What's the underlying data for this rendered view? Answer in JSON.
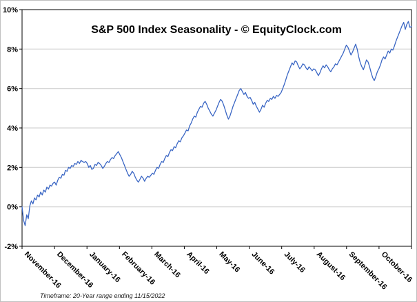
{
  "chart_data": {
    "type": "line",
    "title": "S&P 500 Index Seasonality - © EquityClock.com",
    "footnote": "Timeframe: 20-Year range ending 11/15/2022",
    "categories": [
      "November-16",
      "December-16",
      "January-16",
      "February-16",
      "March-16",
      "April-16",
      "May-16",
      "June-16",
      "July-16",
      "August-16",
      "September-16",
      "October-16"
    ],
    "y_ticks": [
      "-2%",
      "0%",
      "2%",
      "4%",
      "6%",
      "8%",
      "10%"
    ],
    "ylim": [
      -2,
      10
    ],
    "grid": true,
    "legend_position": "none",
    "line_color": "#3A66C4",
    "grid_color": "#C9C9C9",
    "axis_color": "#000000",
    "values": [
      0.0,
      -0.7,
      -0.95,
      -0.4,
      -0.6,
      0.05,
      0.3,
      0.15,
      0.45,
      0.35,
      0.6,
      0.5,
      0.75,
      0.6,
      0.85,
      0.75,
      1.0,
      0.9,
      1.1,
      1.05,
      1.2,
      1.25,
      1.1,
      1.35,
      1.5,
      1.45,
      1.65,
      1.6,
      1.85,
      1.8,
      2.0,
      1.95,
      2.1,
      2.05,
      2.2,
      2.15,
      2.3,
      2.2,
      2.35,
      2.3,
      2.25,
      2.3,
      2.2,
      2.0,
      2.1,
      1.9,
      1.95,
      2.15,
      2.1,
      2.25,
      2.2,
      2.1,
      1.95,
      2.05,
      2.2,
      2.3,
      2.25,
      2.4,
      2.5,
      2.45,
      2.6,
      2.7,
      2.8,
      2.65,
      2.5,
      2.3,
      2.1,
      1.9,
      1.7,
      1.55,
      1.65,
      1.8,
      1.7,
      1.5,
      1.35,
      1.25,
      1.4,
      1.55,
      1.45,
      1.3,
      1.45,
      1.55,
      1.5,
      1.6,
      1.7,
      1.65,
      1.85,
      2.0,
      1.95,
      2.15,
      2.3,
      2.25,
      2.45,
      2.6,
      2.55,
      2.75,
      2.9,
      2.85,
      3.05,
      3.0,
      3.2,
      3.35,
      3.3,
      3.5,
      3.6,
      3.75,
      3.9,
      3.85,
      4.1,
      4.25,
      4.45,
      4.6,
      4.55,
      4.8,
      4.95,
      5.1,
      5.05,
      5.25,
      5.35,
      5.2,
      5.0,
      4.85,
      4.7,
      4.6,
      4.75,
      4.9,
      5.1,
      5.3,
      5.45,
      5.35,
      5.15,
      4.9,
      4.65,
      4.45,
      4.6,
      4.85,
      5.1,
      5.3,
      5.5,
      5.7,
      5.9,
      6.0,
      5.85,
      5.7,
      5.8,
      5.6,
      5.5,
      5.55,
      5.4,
      5.2,
      5.3,
      5.1,
      4.95,
      4.8,
      4.95,
      5.15,
      5.05,
      5.25,
      5.4,
      5.35,
      5.5,
      5.45,
      5.6,
      5.5,
      5.65,
      5.6,
      5.7,
      5.8,
      6.0,
      6.2,
      6.45,
      6.7,
      6.9,
      7.1,
      7.3,
      7.2,
      7.4,
      7.35,
      7.15,
      7.0,
      7.1,
      7.25,
      7.2,
      7.05,
      6.95,
      7.1,
      7.0,
      6.9,
      7.0,
      6.95,
      6.8,
      6.65,
      6.8,
      7.0,
      7.15,
      7.05,
      7.2,
      7.1,
      6.95,
      6.85,
      7.0,
      7.1,
      7.25,
      7.2,
      7.35,
      7.5,
      7.65,
      7.8,
      8.0,
      8.2,
      8.1,
      7.9,
      7.7,
      7.85,
      8.05,
      8.25,
      8.0,
      7.6,
      7.3,
      7.1,
      6.95,
      7.2,
      7.45,
      7.35,
      7.1,
      6.8,
      6.55,
      6.4,
      6.6,
      6.85,
      7.0,
      7.2,
      7.45,
      7.6,
      7.5,
      7.7,
      7.9,
      7.8,
      8.0,
      7.95,
      8.15,
      8.4,
      8.6,
      8.8,
      9.0,
      9.2,
      9.35,
      9.0,
      9.25,
      9.4,
      9.1,
      9.15
    ]
  }
}
